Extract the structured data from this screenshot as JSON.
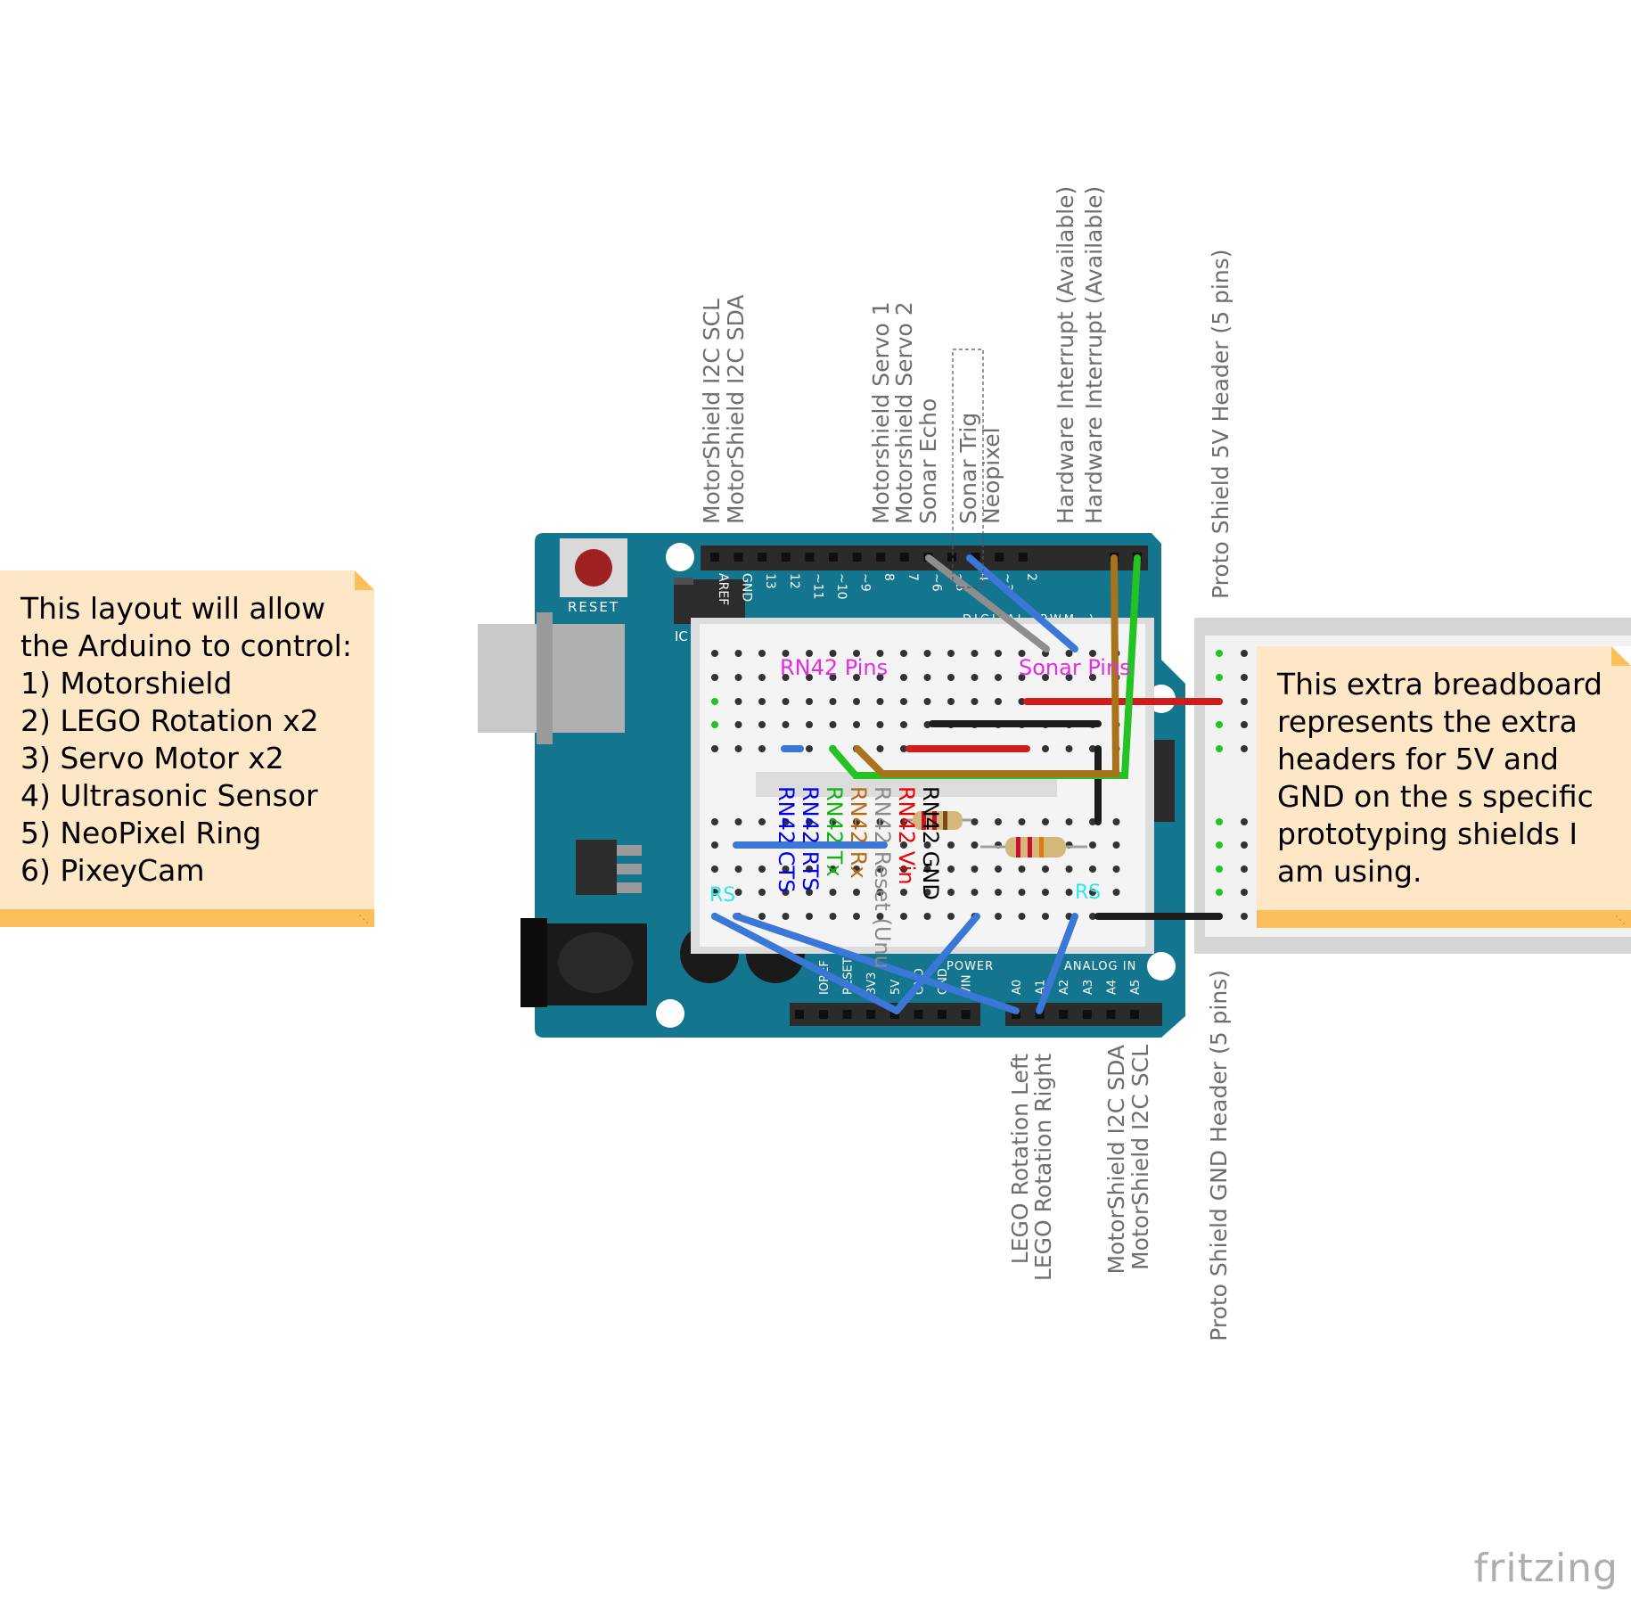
{
  "notes": {
    "left": [
      "This layout will allow",
      "the Arduino to control:",
      "1) Motorshield",
      "2) LEGO Rotation x2",
      "3) Servo Motor x2",
      "4) Ultrasonic Sensor",
      "5) NeoPixel Ring",
      "6) PixeyCam"
    ],
    "right": [
      "This extra breadboard",
      "represents the extra",
      "headers for 5V and",
      "GND on the s specific",
      "prototyping shields I",
      "am using."
    ]
  },
  "top_labels": {
    "i2c_scl": "MotorShield I2C SCL",
    "i2c_sda": "MotorShield I2C SDA",
    "servo1": "Motorshield Servo 1",
    "servo2": "Motorshield Servo 2",
    "sonar_echo": "Sonar Echo",
    "sonar_trig": "Sonar Trig",
    "neopixel": "Neopixel",
    "interrupt1": "Hardware Interrupt (Available)",
    "interrupt2": "Hardware Interrupt (Available)",
    "proto_5v": "Proto Shield 5V Header (5 pins)"
  },
  "bottom_labels": {
    "lego_left": "LEGO Rotation Left",
    "lego_right": "LEGO Rotation Right",
    "i2c_sda": "MotorShield I2C SDA",
    "i2c_scl": "MotorShield I2C SCL",
    "proto_gnd": "Proto Shield GND Header (5 pins)"
  },
  "board": {
    "reset": "RESET",
    "digital_pins": [
      "AREF",
      "GND",
      "13",
      "12",
      "~11",
      "~10",
      "~9",
      "8",
      "7",
      "~6",
      "~5",
      "4",
      "~3",
      "2"
    ],
    "power_pins": [
      "IOREF",
      "RESET",
      "3V3",
      "5V",
      "GND",
      "GND",
      "VIN"
    ],
    "power_header": "POWER",
    "analog_header": "ANALOG IN",
    "analog_pins": [
      "A0",
      "A1",
      "A2",
      "A3",
      "A4",
      "A5"
    ],
    "ic_label": "IC",
    "digital_header": "DIGITAL (PWM~)"
  },
  "breadboard_labels": {
    "rn42_pins": "RN42 Pins",
    "sonar_pins": "Sonar Pins",
    "rs_left": "RS",
    "rs_right": "RS"
  },
  "rn42_labels": [
    {
      "text": "RN42 CTS",
      "color": "#0000ee"
    },
    {
      "text": "RN42 RTS",
      "color": "#0000ee"
    },
    {
      "text": "RN42 Tx",
      "color": "#12b312"
    },
    {
      "text": "RN42 Rx",
      "color": "#b86a12"
    },
    {
      "text": "RN42 Reset (Unu",
      "color": "#8a8a8a"
    },
    {
      "text": "RN42 Vin",
      "color": "#ee0000"
    },
    {
      "text": "RN42 GND",
      "color": "#000000"
    }
  ],
  "colors": {
    "board": "#14758f",
    "note_bg": "#fde7c6",
    "note_bar": "#fbbf5c",
    "magenta": "#e32de3",
    "cyan": "#2ee6f2",
    "wire_blue": "#3b77d6",
    "wire_red": "#d11c1c",
    "wire_green": "#22c322",
    "wire_brown": "#a8731a",
    "wire_black": "#1c1c1c"
  },
  "watermark": "fritzing"
}
